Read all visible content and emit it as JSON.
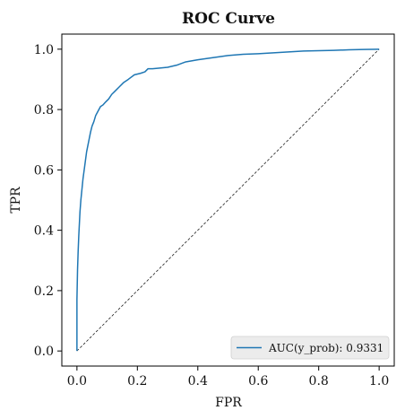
{
  "chart_data": {
    "type": "line",
    "title": "ROC Curve",
    "xlabel": "FPR",
    "ylabel": "TPR",
    "xlim": [
      -0.05,
      1.05
    ],
    "ylim": [
      -0.05,
      1.05
    ],
    "xticks": [
      0.0,
      0.2,
      0.4,
      0.6,
      0.8,
      1.0
    ],
    "yticks": [
      0.0,
      0.2,
      0.4,
      0.6,
      0.8,
      1.0
    ],
    "xtick_labels": [
      "0.0",
      "0.2",
      "0.4",
      "0.6",
      "0.8",
      "1.0"
    ],
    "ytick_labels": [
      "0.0",
      "0.2",
      "0.4",
      "0.6",
      "0.8",
      "1.0"
    ],
    "grid": false,
    "legend_position": "bottom-right",
    "series": [
      {
        "name": "AUC(y_prob): 0.9331",
        "color": "#1f77b4",
        "style": "solid",
        "x": [
          0.0,
          0.0,
          0.002,
          0.004,
          0.006,
          0.008,
          0.01,
          0.013,
          0.016,
          0.02,
          0.024,
          0.028,
          0.032,
          0.036,
          0.04,
          0.045,
          0.05,
          0.056,
          0.062,
          0.07,
          0.078,
          0.086,
          0.095,
          0.105,
          0.115,
          0.125,
          0.14,
          0.155,
          0.17,
          0.19,
          0.21,
          0.225,
          0.235,
          0.25,
          0.27,
          0.3,
          0.33,
          0.36,
          0.4,
          0.45,
          0.5,
          0.55,
          0.6,
          0.65,
          0.7,
          0.75,
          0.8,
          0.85,
          0.9,
          0.95,
          1.0
        ],
        "y": [
          0.0,
          0.17,
          0.27,
          0.33,
          0.38,
          0.42,
          0.46,
          0.5,
          0.53,
          0.57,
          0.6,
          0.63,
          0.66,
          0.68,
          0.7,
          0.725,
          0.745,
          0.76,
          0.78,
          0.795,
          0.81,
          0.815,
          0.825,
          0.835,
          0.85,
          0.86,
          0.875,
          0.89,
          0.9,
          0.915,
          0.92,
          0.925,
          0.935,
          0.935,
          0.937,
          0.94,
          0.947,
          0.958,
          0.965,
          0.972,
          0.979,
          0.983,
          0.985,
          0.988,
          0.991,
          0.994,
          0.995,
          0.996,
          0.998,
          0.999,
          1.0
        ]
      }
    ],
    "reference_line": {
      "x": [
        0.0,
        1.0
      ],
      "y": [
        0.0,
        1.0
      ],
      "color": "#000000",
      "style": "dashed"
    }
  }
}
